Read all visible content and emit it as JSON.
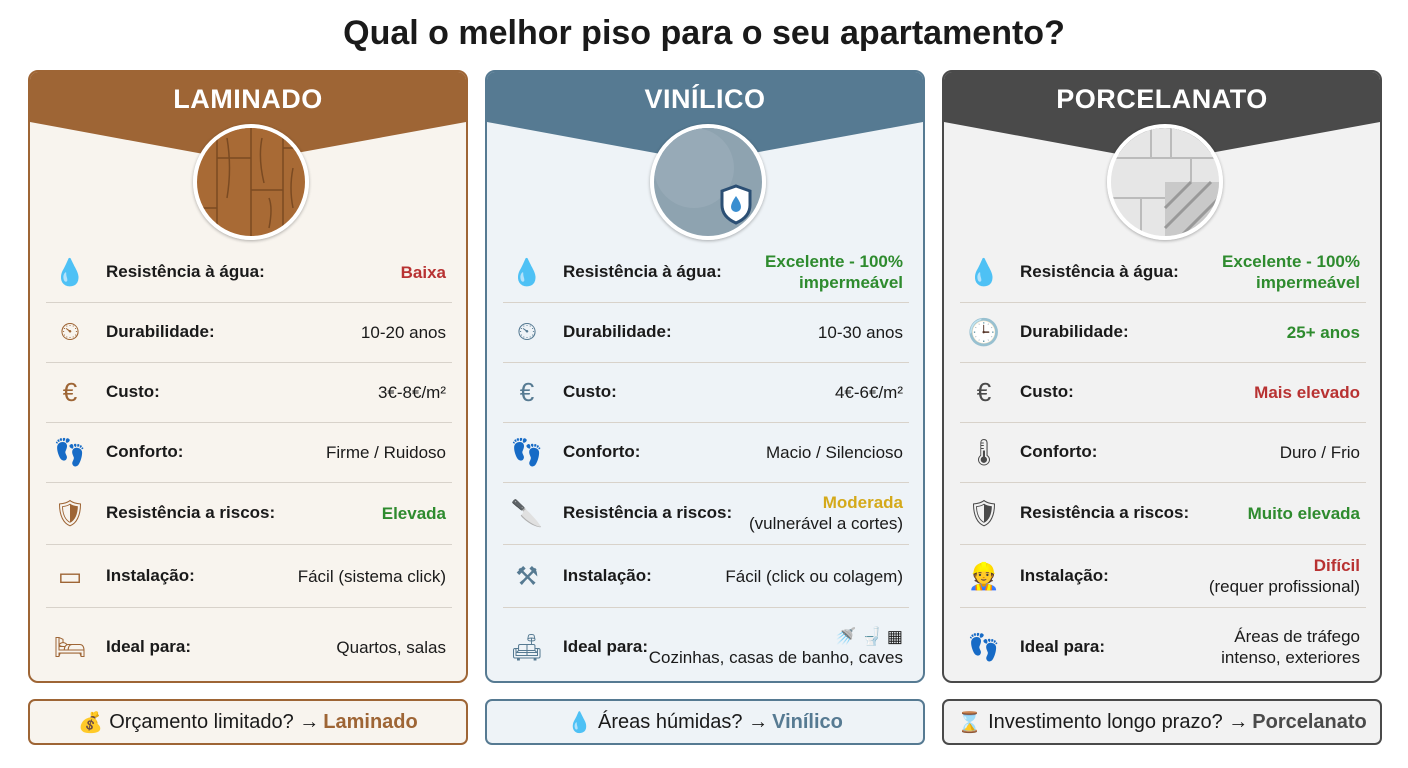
{
  "title": "Qual o melhor piso para o seu apartamento?",
  "colors": {
    "red": "#b83232",
    "green": "#2e8b2e",
    "yellow": "#d4a91a",
    "dark": "#1a1a1a"
  },
  "cards": [
    {
      "name": "LAMINADO",
      "accent": "#9e6535",
      "bg": "#f8f4ee",
      "image": "wood-planks",
      "rows": [
        {
          "icon": "water-drop-warning-icon",
          "glyph": "💧",
          "label": "Resistência à água:",
          "value": "Baixa",
          "value_color": "red"
        },
        {
          "icon": "clock-gear-icon",
          "glyph": "⏲",
          "label": "Durabilidade:",
          "value": "10-20 anos",
          "value_color": "dark"
        },
        {
          "icon": "euro-coins-icon",
          "glyph": "€",
          "label": "Custo:",
          "value": "3€-8€/m²",
          "value_color": "dark"
        },
        {
          "icon": "foot-sound-icon",
          "glyph": "👣",
          "label": "Conforto:",
          "value": "Firme / Ruidoso",
          "value_color": "dark"
        },
        {
          "icon": "shield-check-icon",
          "glyph": "🛡",
          "label": "Resistência a riscos:",
          "value": "Elevada",
          "value_color": "green"
        },
        {
          "icon": "click-plank-icon",
          "glyph": "▭",
          "label": "Instalação:",
          "value": "Fácil (sistema click)",
          "value_color": "dark"
        },
        {
          "icon": "bed-icon",
          "glyph": "🛏",
          "label": "Ideal para:",
          "value": "Quartos, salas",
          "value_color": "dark"
        }
      ],
      "footer": {
        "icon": "money-bag-icon",
        "glyph": "💰",
        "text": "Orçamento limitado? →",
        "answer": "Laminado"
      }
    },
    {
      "name": "VINÍLICO",
      "accent": "#567a92",
      "bg": "#eef3f7",
      "image": "vinyl-texture-shield",
      "rows": [
        {
          "icon": "water-drop-check-icon",
          "glyph": "💧",
          "label": "Resistência à água:",
          "value": "Excelente - 100%",
          "value2": "impermeável",
          "value_color": "green"
        },
        {
          "icon": "clock-gear-icon",
          "glyph": "⏲",
          "label": "Durabilidade:",
          "value": "10-30 anos",
          "value_color": "dark"
        },
        {
          "icon": "euro-coin-icon",
          "glyph": "€",
          "label": "Custo:",
          "value": "4€-6€/m²",
          "value_color": "dark"
        },
        {
          "icon": "foot-cushion-icon",
          "glyph": "👣",
          "label": "Conforto:",
          "value": "Macio / Silencioso",
          "value_color": "dark"
        },
        {
          "icon": "knife-cut-icon",
          "glyph": "🔪",
          "label": "Resistência a riscos:",
          "value": "Moderada",
          "value2": "(vulnerável a cortes)",
          "value_color": "yellow"
        },
        {
          "icon": "installer-icon",
          "glyph": "⚒",
          "label": "Instalação:",
          "value": "Fácil (click ou colagem)",
          "value_color": "dark"
        },
        {
          "icon": "sofa-icon",
          "glyph": "🛋",
          "label": "Ideal para:",
          "value": "🚿  🚽  ▦",
          "value2": "Cozinhas, casas de banho, caves",
          "value_color": "dark"
        }
      ],
      "footer": {
        "icon": "water-drop-icon",
        "glyph": "💧",
        "text": "Áreas húmidas? →",
        "answer": "Vinílico"
      }
    },
    {
      "name": "PORCELANATO",
      "accent": "#4a4a4a",
      "bg": "#f2f2f2",
      "image": "porcelain-tiles",
      "rows": [
        {
          "icon": "water-drop-check-icon",
          "glyph": "💧",
          "label": "Resistência à água:",
          "value": "Excelente - 100%",
          "value2": "impermeável",
          "value_color": "green"
        },
        {
          "icon": "clock-icon",
          "glyph": "🕒",
          "label": "Durabilidade:",
          "value": "25+ anos",
          "value_color": "green"
        },
        {
          "icon": "coins-up-icon",
          "glyph": "€",
          "label": "Custo:",
          "value": "Mais elevado",
          "value_color": "red"
        },
        {
          "icon": "thermometer-icon",
          "glyph": "🌡",
          "label": "Conforto:",
          "value": "Duro / Frio",
          "value_color": "dark"
        },
        {
          "icon": "shield-double-check-icon",
          "glyph": "🛡",
          "label": "Resistência a riscos:",
          "value": "Muito elevada",
          "value_color": "green"
        },
        {
          "icon": "worker-icon",
          "glyph": "👷",
          "label": "Instalação:",
          "value": "Difícil",
          "value2": "(requer profissional)",
          "value_color": "red"
        },
        {
          "icon": "footprints-icon",
          "glyph": "👣",
          "label": "Ideal para:",
          "value": "Áreas de tráfego",
          "value2": "intenso, exteriores",
          "value_color": "dark"
        }
      ],
      "footer": {
        "icon": "hourglass-icon",
        "glyph": "⌛",
        "text": "Investimento longo prazo? →",
        "answer": "Porcelanato"
      }
    }
  ]
}
